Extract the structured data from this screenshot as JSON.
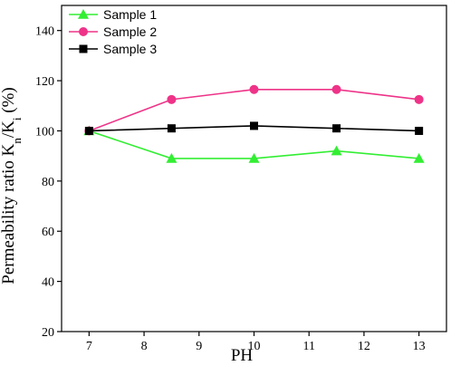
{
  "chart_data": {
    "type": "line",
    "title": "",
    "xlabel": "PH",
    "ylabel_parts": {
      "prefix": "Permeability ratio K",
      "sub1": "n",
      "mid": "/K",
      "sub2": "i",
      "suffix": " (%)"
    },
    "xlim": [
      6.5,
      13.5
    ],
    "ylim": [
      20,
      150
    ],
    "x_ticks": [
      7,
      8,
      9,
      10,
      11,
      12,
      13
    ],
    "y_ticks": [
      20,
      40,
      60,
      80,
      100,
      120,
      140
    ],
    "grid": false,
    "legend_position": "top-left",
    "x": [
      7,
      8.5,
      10,
      11.5,
      13
    ],
    "series": [
      {
        "name": "Sample 1",
        "values": [
          100,
          89,
          89,
          92,
          89
        ],
        "color": "#33ee33",
        "marker": "triangle"
      },
      {
        "name": "Sample 2",
        "values": [
          100,
          112.5,
          116.5,
          116.5,
          112.5
        ],
        "color": "#ee3388",
        "marker": "circle"
      },
      {
        "name": "Sample 3",
        "values": [
          100,
          101,
          102,
          101,
          100
        ],
        "color": "#000000",
        "marker": "square"
      }
    ]
  }
}
